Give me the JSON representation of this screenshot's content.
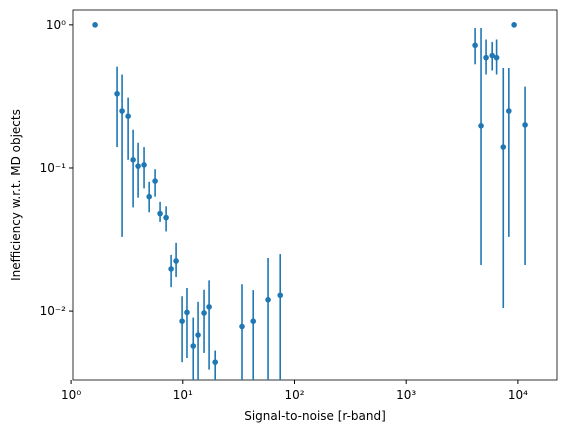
{
  "chart_data": {
    "type": "errorbar",
    "xlabel": "Signal-to-noise [r-band]",
    "ylabel": "Inefficiency w.r.t. MD objects",
    "xscale": "log",
    "yscale": "log",
    "color": "#1f77b4",
    "xlim": [
      1.04,
      22400
    ],
    "ylim": [
      0.0033,
      1.27
    ],
    "xticks": [
      {
        "value": 1,
        "label": "10⁰"
      },
      {
        "value": 10,
        "label": "10¹"
      },
      {
        "value": 100,
        "label": "10²"
      },
      {
        "value": 1000,
        "label": "10³"
      },
      {
        "value": 10000,
        "label": "10⁴"
      }
    ],
    "yticks": [
      {
        "value": 0.01,
        "label": "10⁻²"
      },
      {
        "value": 0.1,
        "label": "10⁻¹"
      },
      {
        "value": 1,
        "label": "10⁰"
      }
    ],
    "x": [
      1.64,
      2.58,
      2.86,
      3.24,
      3.59,
      3.98,
      4.5,
      5.0,
      5.65,
      6.26,
      7.09,
      7.86,
      8.71,
      9.86,
      10.9,
      12.4,
      13.7,
      15.5,
      17.2,
      19.5,
      33.9,
      42.7,
      58,
      74.5,
      4140,
      4680,
      5190,
      5890,
      6450,
      7400,
      8300,
      9250,
      11600
    ],
    "y": [
      1.0,
      0.33,
      0.25,
      0.23,
      0.114,
      0.103,
      0.105,
      0.063,
      0.081,
      0.048,
      0.045,
      0.0197,
      0.0224,
      0.0085,
      0.0098,
      0.0057,
      0.0068,
      0.0097,
      0.0107,
      0.0044,
      0.0078,
      0.0085,
      0.012,
      0.0129,
      0.72,
      0.197,
      0.59,
      0.61,
      0.59,
      0.14,
      0.25,
      1.0,
      0.2
    ],
    "y_err_low": [
      null,
      0.14,
      0.033,
      0.114,
      0.053,
      0.062,
      0.072,
      0.049,
      0.063,
      0.042,
      0.036,
      0.0147,
      0.0173,
      0.0044,
      0.0047,
      0.0025,
      0.003,
      0.0051,
      0.0039,
      0.003,
      0.003,
      0.003,
      0.003,
      0.003,
      0.53,
      0.021,
      0.45,
      0.48,
      0.45,
      0.0105,
      0.033,
      null,
      0.021
    ],
    "y_err_high": [
      null,
      0.51,
      0.45,
      0.31,
      0.185,
      0.15,
      0.14,
      0.08,
      0.098,
      0.058,
      0.054,
      0.0247,
      0.03,
      0.0127,
      0.0145,
      0.009,
      0.0116,
      0.0141,
      0.0164,
      0.0053,
      0.0154,
      0.014,
      0.0235,
      0.025,
      0.95,
      0.95,
      0.79,
      0.76,
      0.79,
      0.5,
      0.5,
      null,
      0.37
    ]
  }
}
